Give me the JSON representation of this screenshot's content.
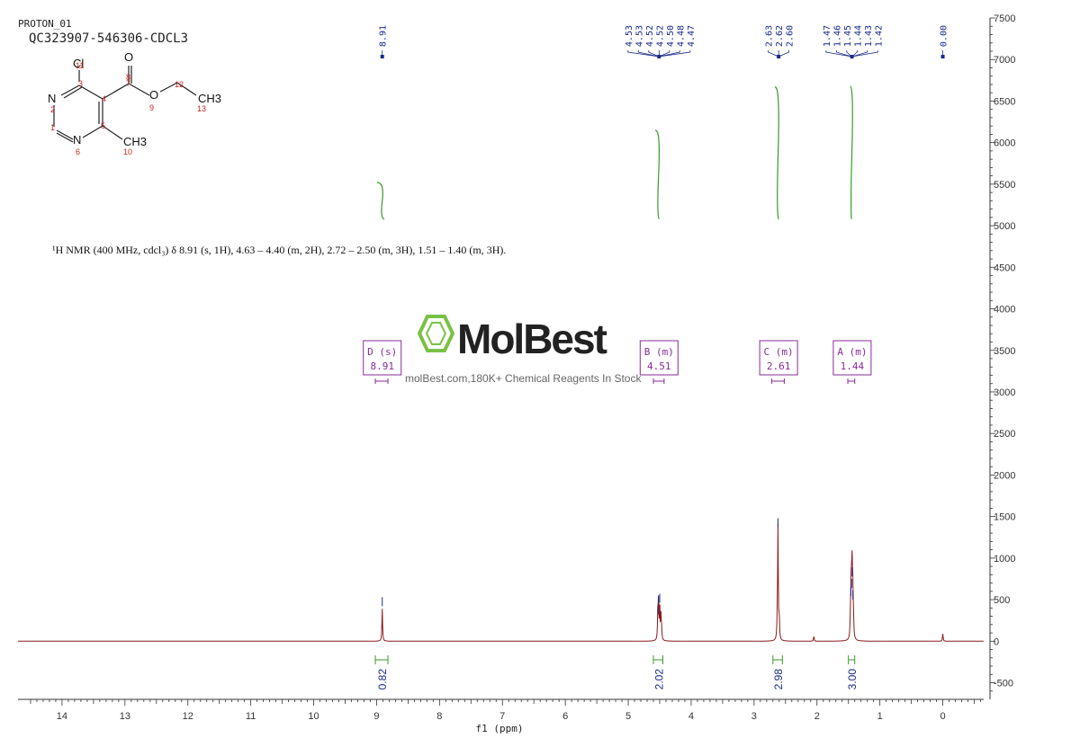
{
  "header": {
    "line1": "PROTON_01",
    "line2": "QC323907-546306-CDCL3"
  },
  "nmr_text": "¹H NMR (400 MHz, cdcl₃) δ 8.91 (s, 1H), 4.63 – 4.40 (m, 2H), 2.72 – 2.50 (m, 3H), 1.51 – 1.40 (m, 3H).",
  "watermark": {
    "brand": "MolBest",
    "tagline": "molBest.com,180K+ Chemical Reagents In Stock"
  },
  "structure": {
    "atoms": [
      "Cl",
      "O",
      "N",
      "O",
      "CH3",
      "N",
      "CH3"
    ],
    "numbers": [
      "11",
      "8",
      "3",
      "4",
      "7",
      "12",
      "2",
      "9",
      "13",
      "1",
      "5",
      "6",
      "10"
    ]
  },
  "colors": {
    "spectrum": "#8b1a1a",
    "integral_curve": "#3a9a2a",
    "peak_label": "#1a2a8a",
    "multiplet": "#8a2a9a",
    "logo_green": "#7ac143",
    "atom_number": "#cc2222"
  },
  "chart_data": {
    "type": "line",
    "title": "",
    "xlabel": "f1 (ppm)",
    "ylabel": "",
    "xlim": [
      14.7,
      -0.65
    ],
    "ylim": [
      -700,
      7500
    ],
    "x_ticks": [
      14,
      13,
      12,
      11,
      10,
      9,
      8,
      7,
      6,
      5,
      4,
      3,
      2,
      1,
      0
    ],
    "y_ticks": [
      7500,
      7000,
      6500,
      6000,
      5500,
      5000,
      4500,
      4000,
      3500,
      3000,
      2500,
      2000,
      1500,
      1000,
      500,
      0,
      -500
    ],
    "peaks": [
      {
        "ppm": 8.91,
        "height": 400
      },
      {
        "ppm": 4.53,
        "height": 300
      },
      {
        "ppm": 4.52,
        "height": 420
      },
      {
        "ppm": 4.5,
        "height": 440
      },
      {
        "ppm": 4.48,
        "height": 280
      },
      {
        "ppm": 4.47,
        "height": 120
      },
      {
        "ppm": 2.62,
        "height": 1350
      },
      {
        "ppm": 2.6,
        "height": 250
      },
      {
        "ppm": 2.63,
        "height": 200
      },
      {
        "ppm": 1.46,
        "height": 520
      },
      {
        "ppm": 1.45,
        "height": 620
      },
      {
        "ppm": 1.44,
        "height": 760
      },
      {
        "ppm": 1.43,
        "height": 480
      },
      {
        "ppm": 1.42,
        "height": 200
      },
      {
        "ppm": 1.47,
        "height": 150
      },
      {
        "ppm": 0.0,
        "height": 90
      },
      {
        "ppm": 2.05,
        "height": 60
      }
    ],
    "peak_labels": [
      {
        "group": "g1",
        "labels": [
          "8.91"
        ]
      },
      {
        "group": "g2",
        "labels": [
          "4.53",
          "4.53",
          "4.52",
          "4.52",
          "4.50",
          "4.48",
          "4.47"
        ]
      },
      {
        "group": "g3",
        "labels": [
          "2.63",
          "2.62",
          "2.60"
        ]
      },
      {
        "group": "g4",
        "labels": [
          "1.47",
          "1.46",
          "1.45",
          "1.44",
          "1.43",
          "1.42"
        ]
      },
      {
        "group": "g5",
        "labels": [
          "0.00"
        ]
      }
    ],
    "multiplets": [
      {
        "id": "D",
        "type": "s",
        "shift": "8.91",
        "range": [
          8.82,
          9.02
        ]
      },
      {
        "id": "B",
        "type": "m",
        "shift": "4.51",
        "range": [
          4.43,
          4.6
        ]
      },
      {
        "id": "C",
        "type": "m",
        "shift": "2.61",
        "range": [
          2.52,
          2.72
        ]
      },
      {
        "id": "A",
        "type": "m",
        "shift": "1.44",
        "range": [
          1.4,
          1.51
        ]
      }
    ],
    "integrals": [
      {
        "value": "0.82",
        "range": [
          8.82,
          9.02
        ],
        "start": 5080,
        "end": 5520
      },
      {
        "value": "2.02",
        "range": [
          4.45,
          4.6
        ],
        "start": 5080,
        "end": 6150
      },
      {
        "value": "2.98",
        "range": [
          2.55,
          2.7
        ],
        "start": 5080,
        "end": 6670
      },
      {
        "value": "3.00",
        "range": [
          1.4,
          1.5
        ],
        "start": 5080,
        "end": 6680
      }
    ]
  }
}
